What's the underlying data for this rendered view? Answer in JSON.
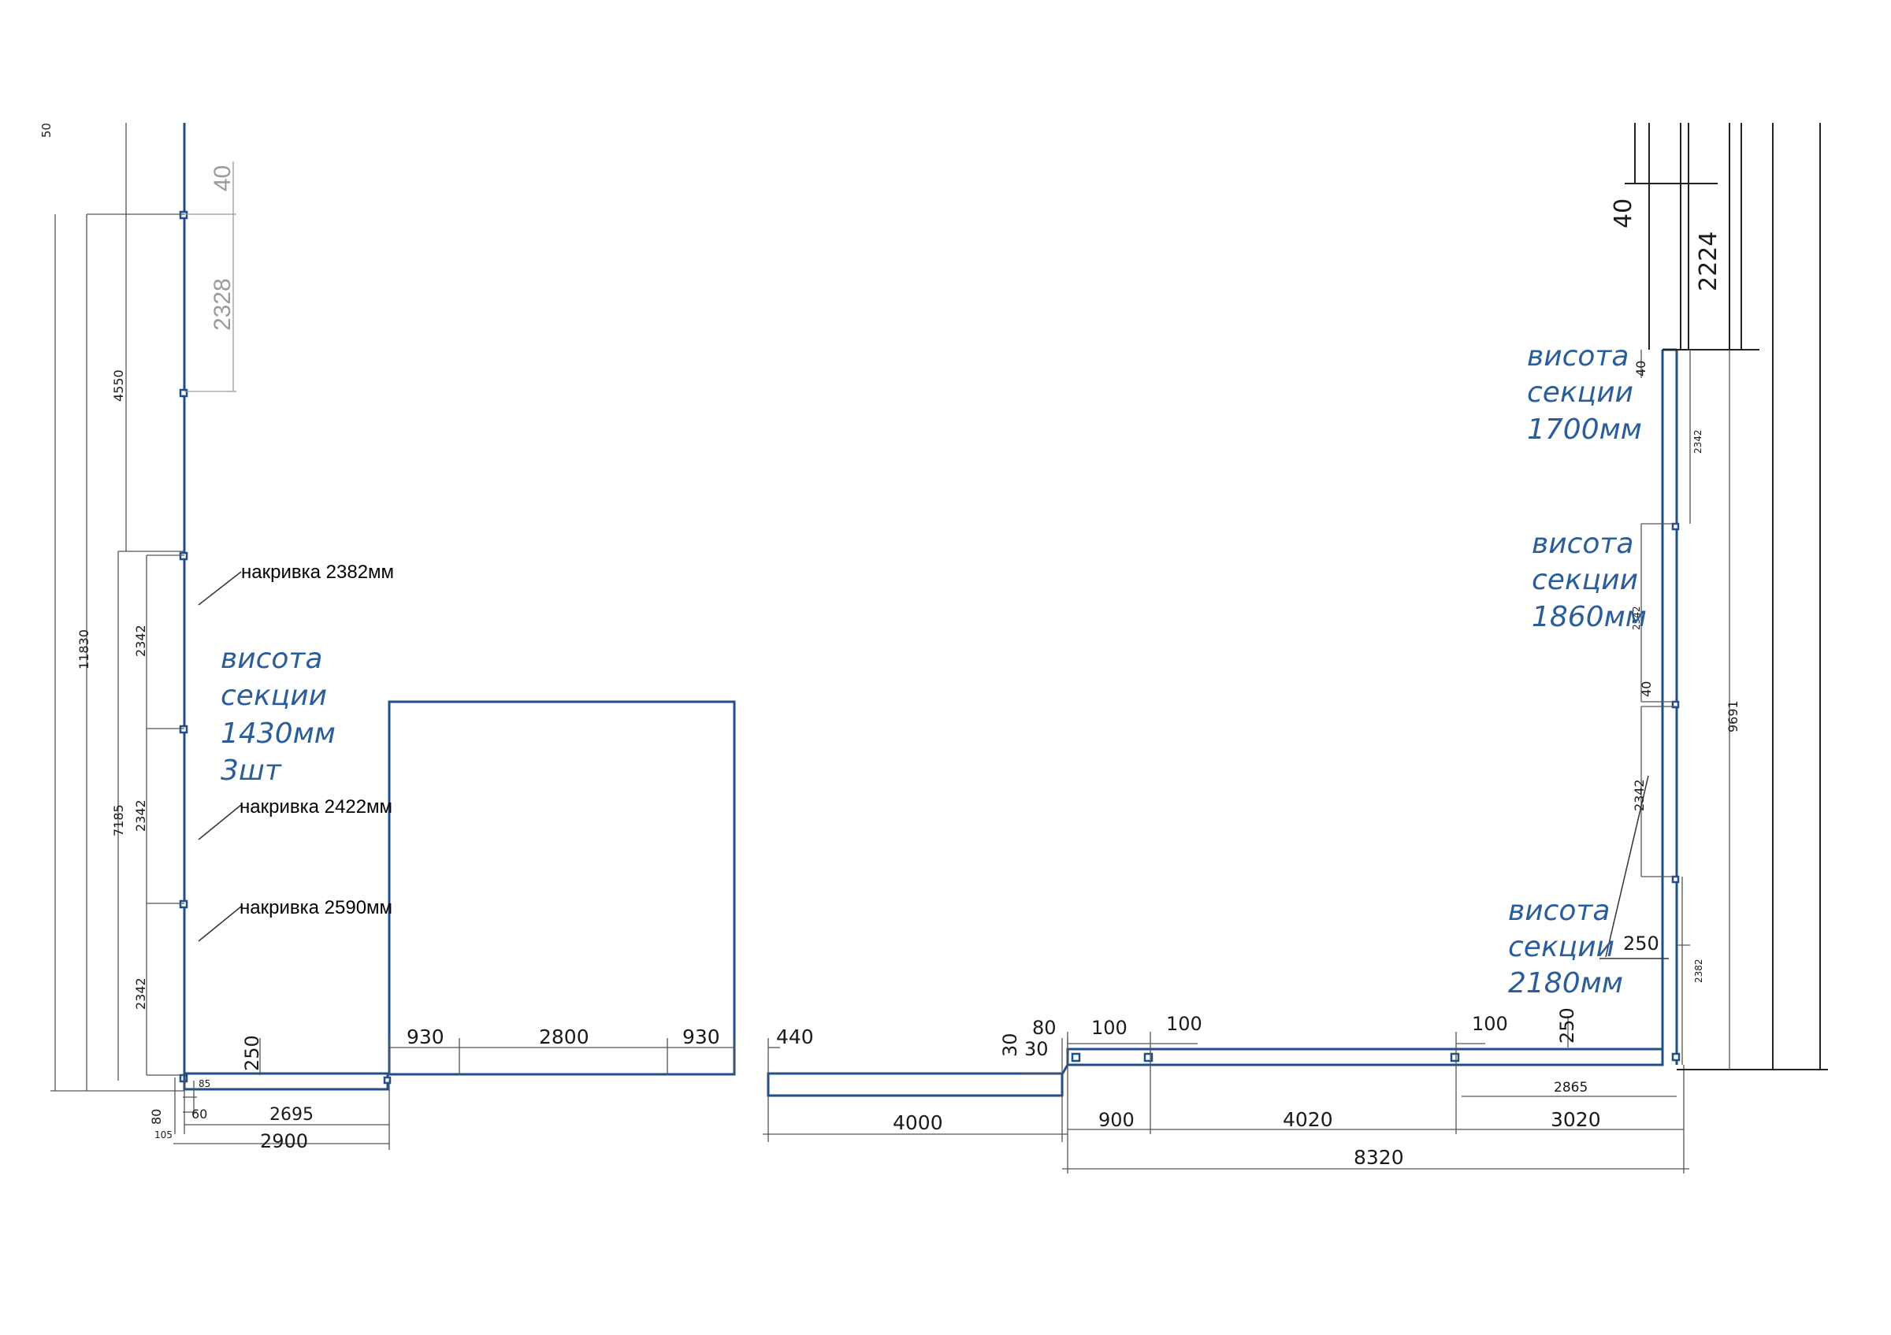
{
  "left_wall": {
    "dims": [
      "50",
      "40",
      "2328",
      "4550",
      "11830",
      "2342",
      "2342",
      "2342",
      "7185",
      "85",
      "60",
      "80",
      "105",
      "250",
      "2695",
      "2900"
    ],
    "notes": [
      "накривка 2382мм",
      "накривка 2422мм",
      "накривка 2590мм"
    ],
    "section_label": [
      "висота",
      "секции",
      "1430мм",
      "3шт"
    ]
  },
  "middle": {
    "dims": [
      "930",
      "2800",
      "930",
      "440",
      "4000",
      "80",
      "30",
      "30"
    ]
  },
  "right_wall": {
    "dims": [
      "100",
      "100",
      "100",
      "250",
      "2865",
      "900",
      "4020",
      "3020",
      "8320",
      "40",
      "2224",
      "40",
      "2342",
      "2342",
      "40",
      "2342",
      "250",
      "2382",
      "9691"
    ],
    "section_labels": [
      [
        "висота",
        "секции",
        "1700мм"
      ],
      [
        "висота",
        "секции",
        "1860мм"
      ],
      [
        "висота",
        "секции",
        "2180мм"
      ]
    ]
  },
  "colors": {
    "wall": "#1f4e89",
    "label": "#2a5d99",
    "dimension": "#555555"
  }
}
